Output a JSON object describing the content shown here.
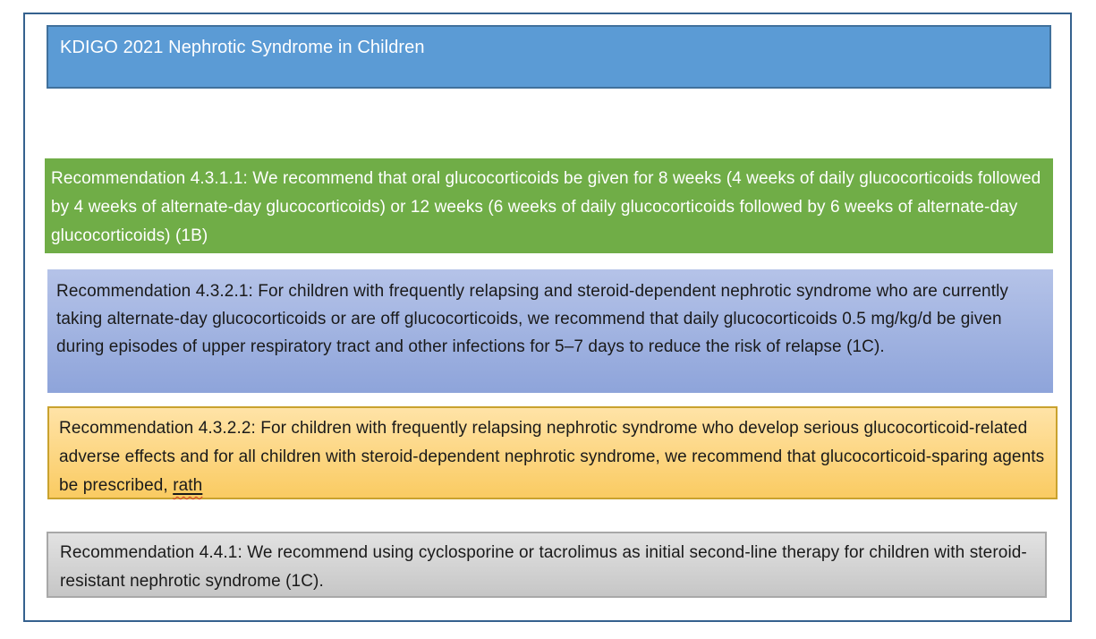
{
  "slide": {
    "title": "KDIGO 2021 Nephrotic Syndrome in Children",
    "boxes": [
      {
        "id": "Recommendation 4.3.1.1",
        "style": "green",
        "text": "Recommendation 4.3.1.1: We recommend that oral glucocorticoids be given for 8 weeks (4 weeks of daily glucocorticoids followed by 4 weeks of alternate-day glucocorticoids) or 12 weeks (6 weeks of daily glucocorticoids followed by 6 weeks of alternate-day glucocorticoids) (1B)"
      },
      {
        "id": "Recommendation 4.3.2.1",
        "style": "periwinkle",
        "text": "Recommendation 4.3.2.1: For children with frequently relapsing and steroid-dependent nephrotic syndrome who are currently taking alternate-day glucocorticoids or are off glucocorticoids, we recommend that daily glucocorticoids 0.5 mg/kg/d be given during episodes of upper respiratory tract and other infections for 5–7 days to reduce the risk of relapse (1C)."
      },
      {
        "id": "Recommendation 4.3.2.2",
        "style": "orange",
        "text": "Recommendation 4.3.2.2: For children with frequently relapsing nephrotic syndrome who develop serious glucocorticoid-related adverse effects and for all children with steroid-dependent nephrotic syndrome, we recommend that glucocorticoid-sparing agents be prescribed, ",
        "typing_word": "rath"
      },
      {
        "id": "Recommendation 4.4.1",
        "style": "gray",
        "text": "Recommendation 4.4.1: We recommend using cyclosporine or tacrolimus as initial second-line therapy for children with steroid-resistant nephrotic syndrome (1C)."
      }
    ],
    "colors": {
      "slide_border": "#35618E",
      "title_fill": "#5B9BD5",
      "title_border": "#41719C",
      "green_fill": "#70AD47",
      "periwinkle_top": "#B5C3E8",
      "periwinkle_bottom": "#8EA4DA",
      "orange_top": "#FFE3A7",
      "orange_bottom": "#FACB62",
      "orange_border": "#C9A22E",
      "gray_top": "#E2E2E2",
      "gray_bottom": "#C6C6C6",
      "gray_border": "#A8A8A8",
      "text_dark": "#1A1A1A",
      "text_light": "#FFFFFF",
      "spellcheck_underline": "#D93B2F"
    }
  }
}
